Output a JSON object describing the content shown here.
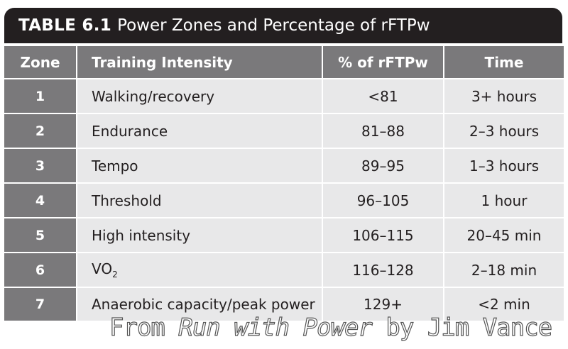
{
  "table": {
    "number": "TABLE 6.1",
    "title": "Power Zones and Percentage of rFTPw",
    "headers": {
      "zone": "Zone",
      "intensity": "Training Intensity",
      "percent": "% of rFTPw",
      "time": "Time"
    },
    "rows": [
      {
        "zone": "1",
        "intensity": "Walking/recovery",
        "percent": "<81",
        "time": "3+ hours"
      },
      {
        "zone": "2",
        "intensity": "Endurance",
        "percent": "81–88",
        "time": "2–3 hours"
      },
      {
        "zone": "3",
        "intensity": "Tempo",
        "percent": "89–95",
        "time": "1–3 hours"
      },
      {
        "zone": "4",
        "intensity": "Threshold",
        "percent": "96–105",
        "time": "1 hour"
      },
      {
        "zone": "5",
        "intensity": "High intensity",
        "percent": "106–115",
        "time": "20–45 min"
      },
      {
        "zone": "6",
        "intensity": "VO",
        "intensity_sub": "2",
        "percent": "116–128",
        "time": "2–18 min"
      },
      {
        "zone": "7",
        "intensity": "Anaerobic capacity/peak power",
        "percent": "129+",
        "time": "<2 min"
      }
    ]
  },
  "watermark": {
    "prefix": "From ",
    "book": "Run with Power",
    "suffix": " by Jim Vance"
  },
  "colors": {
    "title_bar": "#231f20",
    "header_cell": "#7a797b",
    "body_cell": "#e8e8e9"
  }
}
